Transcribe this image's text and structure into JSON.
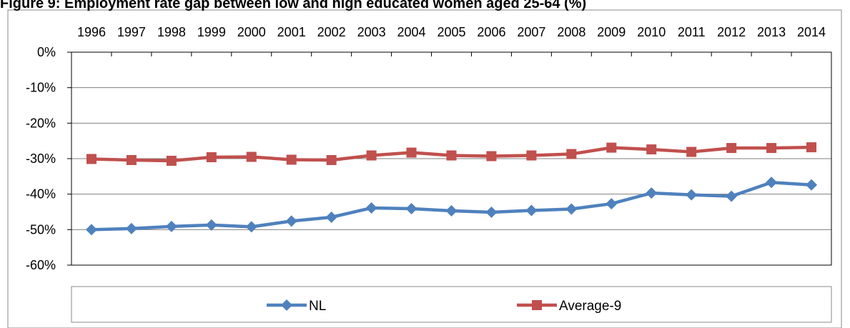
{
  "chart_data": {
    "type": "line",
    "title_visible": "Figure 9: Employment rate gap between low and high educated women aged 25-64 (%)",
    "x": [
      "1996",
      "1997",
      "1998",
      "1999",
      "2000",
      "2001",
      "2002",
      "2003",
      "2004",
      "2005",
      "2006",
      "2007",
      "2008",
      "2009",
      "2010",
      "2011",
      "2012",
      "2013",
      "2014"
    ],
    "series": [
      {
        "name": "NL",
        "color": "#4F81BD",
        "marker": "diamond",
        "values": [
          -50.0,
          -49.7,
          -49.1,
          -48.7,
          -49.2,
          -47.6,
          -46.5,
          -43.9,
          -44.1,
          -44.7,
          -45.1,
          -44.6,
          -44.2,
          -42.7,
          -39.7,
          -40.2,
          -40.6,
          -36.7,
          -37.4
        ]
      },
      {
        "name": "Average-9",
        "color": "#C0504D",
        "marker": "square",
        "values": [
          -30.1,
          -30.4,
          -30.6,
          -29.6,
          -29.5,
          -30.3,
          -30.4,
          -29.1,
          -28.3,
          -29.1,
          -29.3,
          -29.1,
          -28.7,
          -26.9,
          -27.4,
          -28.1,
          -27.0,
          -27.0,
          -26.8
        ]
      }
    ],
    "yticks": [
      "0%",
      "-10%",
      "-20%",
      "-30%",
      "-40%",
      "-50%",
      "-60%"
    ],
    "ylim": [
      -60,
      0
    ],
    "xaxis_position": "top",
    "grid": true,
    "legend": "bottom"
  }
}
